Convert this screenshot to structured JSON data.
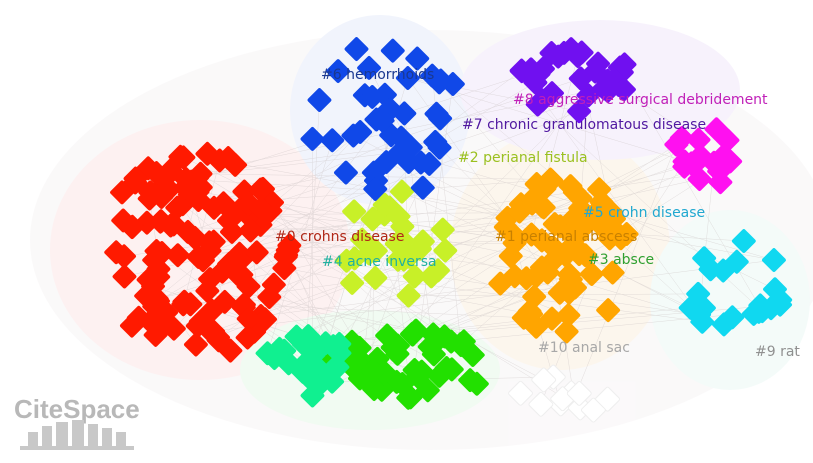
{
  "clusters": [
    {
      "label": "#0 crohns disease",
      "color": "#ff1a00"
    },
    {
      "label": "#1 perianal abscess",
      "color": "#ffa500"
    },
    {
      "label": "#2 perianal fistula",
      "color": "#c8f028"
    },
    {
      "label": "#3 absce",
      "color": "#22e000"
    },
    {
      "label": "#4 acne inversa",
      "color": "#10f090"
    },
    {
      "label": "#5 crohn disease",
      "color": "#10d8f0"
    },
    {
      "label": "#6 hemorrhoids",
      "color": "#1048e8"
    },
    {
      "label": "#7 chronic granulomatous disease",
      "color": "#7010f0"
    },
    {
      "label": "#8 aggressive surgical debridement",
      "color": "#ff10f0"
    },
    {
      "label": "#9 rat",
      "color": "#ffffff"
    },
    {
      "label": "#10 anal sac",
      "color": "#ffffff"
    }
  ],
  "logo": "CiteSpace"
}
